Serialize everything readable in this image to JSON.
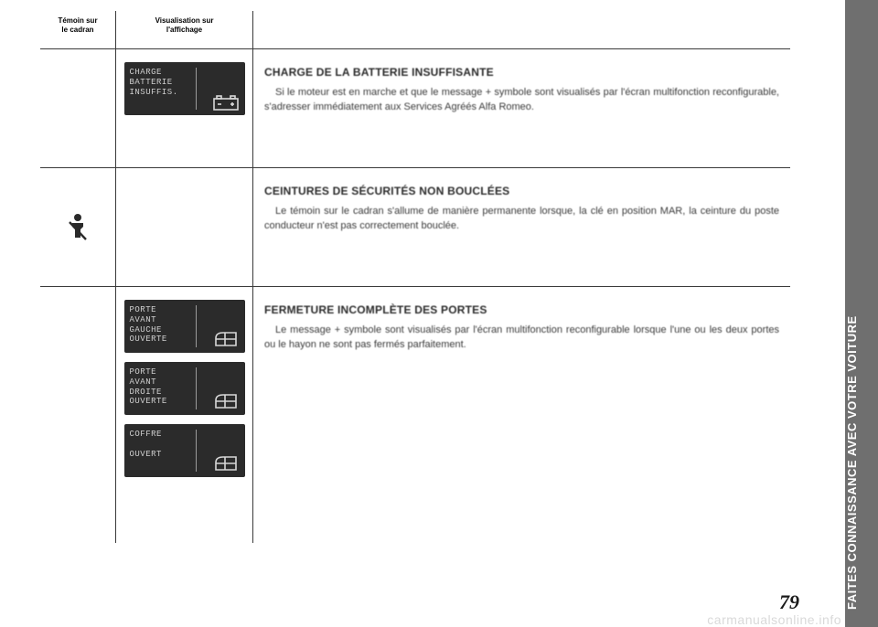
{
  "side_tab": "FAITES CONNAISSANCE AVEC VOTRE VOITURE",
  "page_number": "79",
  "watermark": "carmanualsonline.info",
  "header": {
    "col_a": "Témoin sur\nle cadran",
    "col_b": "Visualisation sur\nl'affichage"
  },
  "rows": [
    {
      "lcds": [
        {
          "lines": "CHARGE\nBATTERIE\nINSUFFIS.",
          "icon": "battery"
        }
      ],
      "title": "CHARGE DE LA BATTERIE INSUFFISANTE",
      "body": "Si le moteur est en marche et que le message + symbole sont visualisés par l'écran multifonction reconfigurable, s'adresser immédiatement aux Services Agréés Alfa Romeo."
    },
    {
      "pictogram": "seatbelt",
      "title": "CEINTURES DE SÉCURITÉS NON BOUCLÉES",
      "body": "Le témoin sur le cadran s'allume de manière permanente lorsque, la clé en position MAR, la ceinture du poste conducteur n'est pas correctement bouclée."
    },
    {
      "lcds": [
        {
          "lines": "PORTE\nAVANT\nGAUCHE\nOUVERTE",
          "icon": "door"
        },
        {
          "lines": "PORTE\nAVANT\nDROITE\nOUVERTE",
          "icon": "door"
        },
        {
          "lines": "COFFRE\n\nOUVERT",
          "icon": "door"
        }
      ],
      "title": "FERMETURE INCOMPLÈTE DES PORTES",
      "body": "Le message + symbole sont visualisés par l'écran multifonction reconfigurable lorsque l'une ou les deux portes ou le hayon ne sont pas fermés parfaitement."
    }
  ],
  "colors": {
    "side_tab_bg": "#6f6f6f",
    "side_tab_fg": "#ffffff",
    "lcd_bg": "#2b2b2b",
    "lcd_fg": "#cfcfcf",
    "rule": "#3a3a3a",
    "watermark": "#d9d9d9"
  }
}
